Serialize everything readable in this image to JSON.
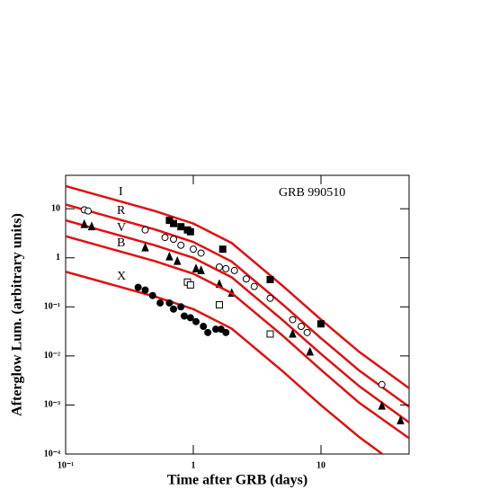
{
  "chart_data": {
    "type": "line",
    "log_x": true,
    "log_y": true,
    "annotation": "GRB 990510",
    "x_label": "Time after GRB (days)",
    "y_label": "Afterglow Lum. (arbitrary units)",
    "xlim": [
      0.1,
      49
    ],
    "ylim": [
      0.0001,
      48
    ],
    "xticks": [
      {
        "value": 0.1,
        "label": "10⁻¹"
      },
      1,
      10
    ],
    "yticks": [
      {
        "value": 0.0001,
        "label": "10⁻⁴"
      },
      {
        "value": 0.001,
        "label": "10⁻³"
      },
      {
        "value": 0.01,
        "label": "10⁻²"
      },
      {
        "value": 0.1,
        "label": "10⁻¹"
      },
      1,
      10
    ],
    "series": [
      {
        "name": "I",
        "color": "#e01010",
        "x": [
          0.1,
          0.2,
          0.5,
          1,
          2,
          5,
          10,
          20,
          49
        ],
        "values": [
          29,
          17.5,
          9,
          5,
          2,
          0.27,
          0.055,
          0.012,
          0.0022
        ],
        "points": {
          "marker": "square-filled",
          "color": "#000000",
          "x": [
            0.65,
            0.7,
            0.8,
            0.9,
            0.95,
            1.7,
            4,
            10
          ],
          "values": [
            5.8,
            5,
            4.3,
            3.7,
            3.4,
            1.5,
            0.36,
            0.045
          ]
        }
      },
      {
        "name": "R",
        "color": "#e01010",
        "x": [
          0.1,
          0.2,
          0.5,
          1,
          2,
          5,
          10,
          20,
          49
        ],
        "values": [
          12.2,
          7.35,
          3.78,
          2.1,
          0.84,
          0.113,
          0.023,
          0.005,
          0.00092
        ],
        "points": {
          "marker": "circle-open",
          "color": "#000000",
          "x": [
            0.14,
            0.15,
            0.42,
            0.6,
            0.7,
            0.8,
            1.0,
            1.15,
            1.6,
            1.8,
            2.1,
            2.6,
            3,
            4,
            6,
            7,
            7.8,
            30
          ],
          "values": [
            9.5,
            9,
            3.7,
            2.6,
            2.4,
            1.8,
            1.5,
            1.25,
            0.65,
            0.6,
            0.55,
            0.37,
            0.26,
            0.15,
            0.055,
            0.04,
            0.03,
            0.0026
          ]
        }
      },
      {
        "name": "V",
        "color": "#e01010",
        "x": [
          0.1,
          0.2,
          0.5,
          1,
          2,
          5,
          10,
          20,
          49
        ],
        "values": [
          5.8,
          3.5,
          1.8,
          1,
          0.4,
          0.054,
          0.011,
          0.0024,
          0.00044
        ],
        "points": {
          "marker": "triangle-filled",
          "color": "#000000",
          "x": [
            0.14,
            0.16,
            0.42,
            0.65,
            0.75,
            1.05,
            1.15,
            1.6,
            2,
            6,
            8.2,
            30,
            42
          ],
          "values": [
            4.8,
            4.3,
            1.6,
            1.05,
            0.85,
            0.6,
            0.55,
            0.29,
            0.19,
            0.028,
            0.012,
            0.00095,
            0.00048
          ]
        }
      },
      {
        "name": "B",
        "color": "#e01010",
        "x": [
          0.1,
          0.2,
          0.5,
          1,
          2,
          5,
          10,
          20,
          49
        ],
        "values": [
          2.76,
          1.66,
          0.855,
          0.475,
          0.19,
          0.026,
          0.0052,
          0.0011,
          0.00021
        ],
        "points": {
          "marker": "square-open",
          "color": "#000000",
          "x": [
            0.9,
            0.95,
            1.6,
            4
          ],
          "values": [
            0.32,
            0.28,
            0.11,
            0.028
          ]
        }
      },
      {
        "name": "X",
        "color": "#e01010",
        "x": [
          0.1,
          0.2,
          0.5,
          1,
          2,
          5,
          10,
          20,
          49
        ],
        "values": [
          0.52,
          0.315,
          0.162,
          0.09,
          0.036,
          0.0049,
          0.00099,
          0.00022,
          4e-05
        ],
        "points": {
          "marker": "circle-filled",
          "color": "#000000",
          "x": [
            0.37,
            0.42,
            0.48,
            0.55,
            0.65,
            0.7,
            0.8,
            0.85,
            0.95,
            1.05,
            1.2,
            1.3,
            1.5,
            1.65,
            1.8
          ],
          "values": [
            0.25,
            0.22,
            0.17,
            0.12,
            0.12,
            0.09,
            0.1,
            0.065,
            0.06,
            0.05,
            0.04,
            0.03,
            0.035,
            0.035,
            0.03
          ]
        }
      }
    ]
  }
}
